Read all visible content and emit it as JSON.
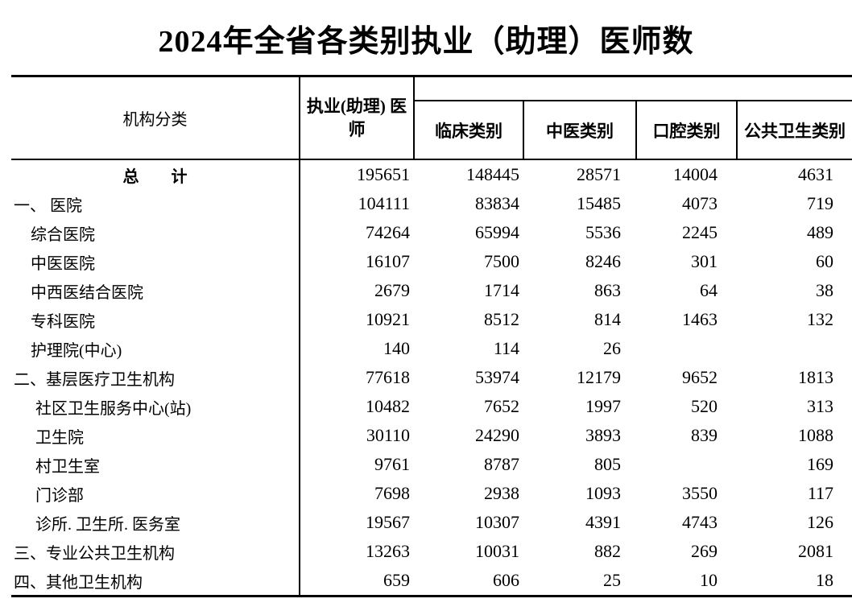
{
  "page": {
    "title": "2024年全省各类别执业（助理）医师数"
  },
  "table": {
    "headers": {
      "org_class": "机构分类",
      "practicing": "执业(助理) 医师",
      "categories": [
        "临床类别",
        "中医类别",
        "口腔类别",
        "公共卫生类别"
      ]
    },
    "rows": [
      {
        "label": "总　　计",
        "level": 0,
        "bold": true,
        "align": "center",
        "values": [
          "195651",
          "148445",
          "28571",
          "14004",
          "4631"
        ]
      },
      {
        "label": "一、 医院",
        "level": 0,
        "values": [
          "104111",
          "83834",
          "15485",
          "4073",
          "719"
        ]
      },
      {
        "label": "综合医院",
        "level": 1,
        "values": [
          "74264",
          "65994",
          "5536",
          "2245",
          "489"
        ]
      },
      {
        "label": "中医医院",
        "level": 1,
        "values": [
          "16107",
          "7500",
          "8246",
          "301",
          "60"
        ]
      },
      {
        "label": "中西医结合医院",
        "level": 1,
        "values": [
          "2679",
          "1714",
          "863",
          "64",
          "38"
        ]
      },
      {
        "label": "专科医院",
        "level": 1,
        "values": [
          "10921",
          "8512",
          "814",
          "1463",
          "132"
        ]
      },
      {
        "label": "护理院(中心)",
        "level": 1,
        "values": [
          "140",
          "114",
          "26",
          "",
          ""
        ]
      },
      {
        "label": "二、基层医疗卫生机构",
        "level": 0,
        "values": [
          "77618",
          "53974",
          "12179",
          "9652",
          "1813"
        ]
      },
      {
        "label": "社区卫生服务中心(站)",
        "level": 2,
        "values": [
          "10482",
          "7652",
          "1997",
          "520",
          "313"
        ]
      },
      {
        "label": "卫生院",
        "level": 2,
        "values": [
          "30110",
          "24290",
          "3893",
          "839",
          "1088"
        ]
      },
      {
        "label": "村卫生室",
        "level": 2,
        "values": [
          "9761",
          "8787",
          "805",
          "",
          "169"
        ]
      },
      {
        "label": "门诊部",
        "level": 2,
        "values": [
          "7698",
          "2938",
          "1093",
          "3550",
          "117"
        ]
      },
      {
        "label": "诊所. 卫生所. 医务室",
        "level": 2,
        "values": [
          "19567",
          "10307",
          "4391",
          "4743",
          "126"
        ]
      },
      {
        "label": "三、专业公共卫生机构",
        "level": 0,
        "values": [
          "13263",
          "10031",
          "882",
          "269",
          "2081"
        ]
      },
      {
        "label": "四、其他卫生机构",
        "level": 0,
        "values": [
          "659",
          "606",
          "25",
          "10",
          "18"
        ]
      }
    ]
  }
}
